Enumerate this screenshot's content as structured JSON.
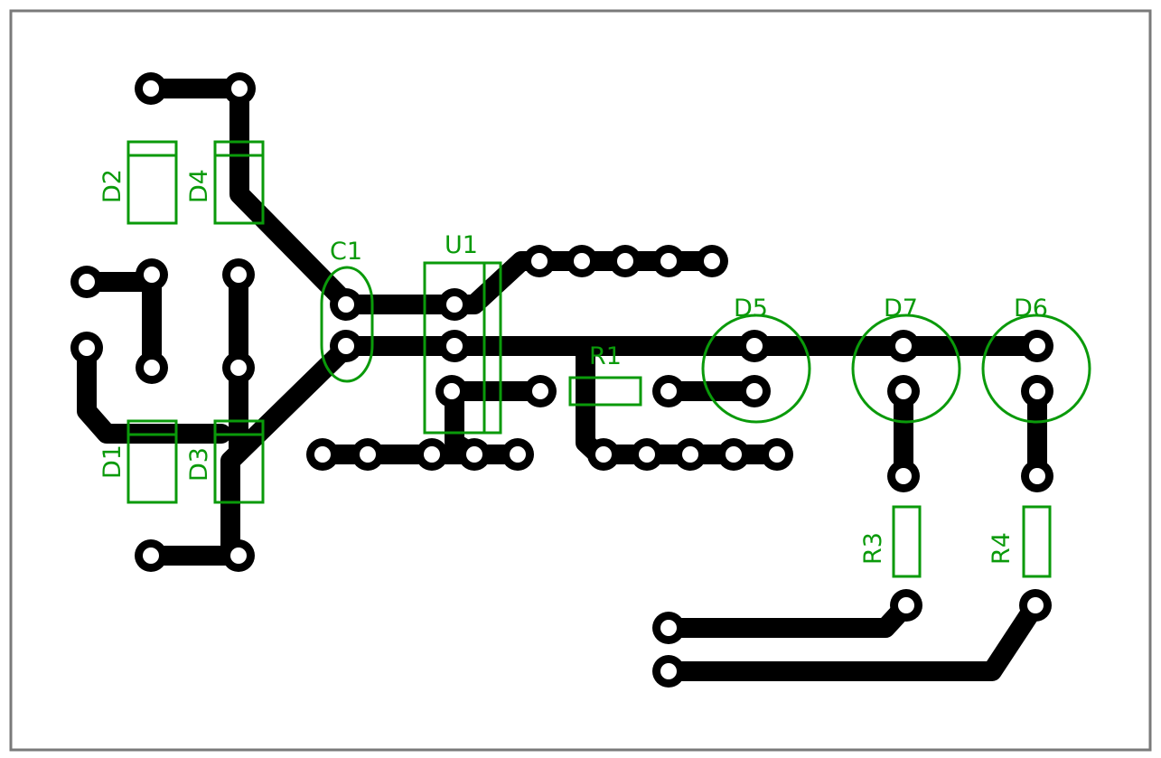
{
  "board": {
    "outline_color": "#7a7a7a",
    "copper_color": "#000000",
    "silkscreen_color": "#0a9a0a"
  },
  "components": {
    "D1": "D1",
    "D2": "D2",
    "D3": "D3",
    "D4": "D4",
    "D5": "D5",
    "D6": "D6",
    "D7": "D7",
    "C1": "C1",
    "U1": "U1",
    "R1": "R1",
    "R3": "R3",
    "R4": "R4"
  }
}
